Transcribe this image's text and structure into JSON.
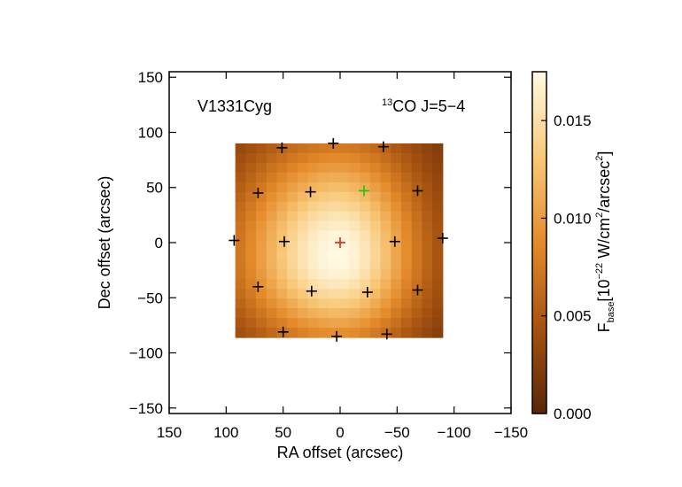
{
  "chart_data": {
    "type": "heatmap",
    "source_label": "V1331Cyg",
    "line_label": {
      "isotope": "13",
      "molecule": "CO J=5−4"
    },
    "xlabel": "RA offset (arcsec)",
    "ylabel": "Dec offset (arcsec)",
    "xlim": [
      150,
      -150
    ],
    "ylim": [
      -155,
      155
    ],
    "xticks": [
      150,
      100,
      50,
      0,
      -50,
      -100,
      -150
    ],
    "xtick_labels": [
      "150",
      "100",
      "50",
      "0",
      "−50",
      "−100",
      "−150"
    ],
    "yticks": [
      150,
      100,
      50,
      0,
      -50,
      -100,
      -150
    ],
    "ytick_labels": [
      "150",
      "100",
      "50",
      "0",
      "−50",
      "−100",
      "−150"
    ],
    "map_extent": {
      "x": [
        92,
        -90
      ],
      "y": [
        -86,
        90
      ]
    },
    "map_peak": {
      "x": 2,
      "y": -12
    },
    "map_max": 0.0175,
    "colorbar": {
      "range": [
        0,
        0.0175
      ],
      "ticks": [
        0.0,
        0.005,
        0.01,
        0.015
      ],
      "tick_labels": [
        "0.000",
        "0.005",
        "0.010",
        "0.015"
      ],
      "label_main": "F",
      "label_sub": "base",
      "label_units_a": "[10",
      "label_units_exp": "−22",
      "label_units_b": " W/cm",
      "label_units_exp2": "2",
      "label_units_c": "/arcsec",
      "label_units_exp3": "2",
      "label_units_d": "]"
    },
    "markers": [
      {
        "x": 51,
        "y": 86,
        "color": "black"
      },
      {
        "x": 6,
        "y": 90,
        "color": "black"
      },
      {
        "x": -38,
        "y": 87,
        "color": "black"
      },
      {
        "x": 72,
        "y": 45,
        "color": "black"
      },
      {
        "x": 26,
        "y": 46,
        "color": "black"
      },
      {
        "x": -21,
        "y": 47,
        "color": "green"
      },
      {
        "x": -68,
        "y": 47,
        "color": "black"
      },
      {
        "x": 93,
        "y": 2,
        "color": "black"
      },
      {
        "x": 49,
        "y": 1,
        "color": "black"
      },
      {
        "x": 0,
        "y": 0,
        "color": "red"
      },
      {
        "x": -48,
        "y": 1,
        "color": "black"
      },
      {
        "x": -90,
        "y": 4,
        "color": "black"
      },
      {
        "x": 72,
        "y": -40,
        "color": "black"
      },
      {
        "x": 25,
        "y": -44,
        "color": "black"
      },
      {
        "x": -24,
        "y": -45,
        "color": "black"
      },
      {
        "x": -68,
        "y": -43,
        "color": "black"
      },
      {
        "x": 50,
        "y": -81,
        "color": "black"
      },
      {
        "x": 3,
        "y": -85,
        "color": "black"
      },
      {
        "x": -41,
        "y": -83,
        "color": "black"
      }
    ]
  }
}
